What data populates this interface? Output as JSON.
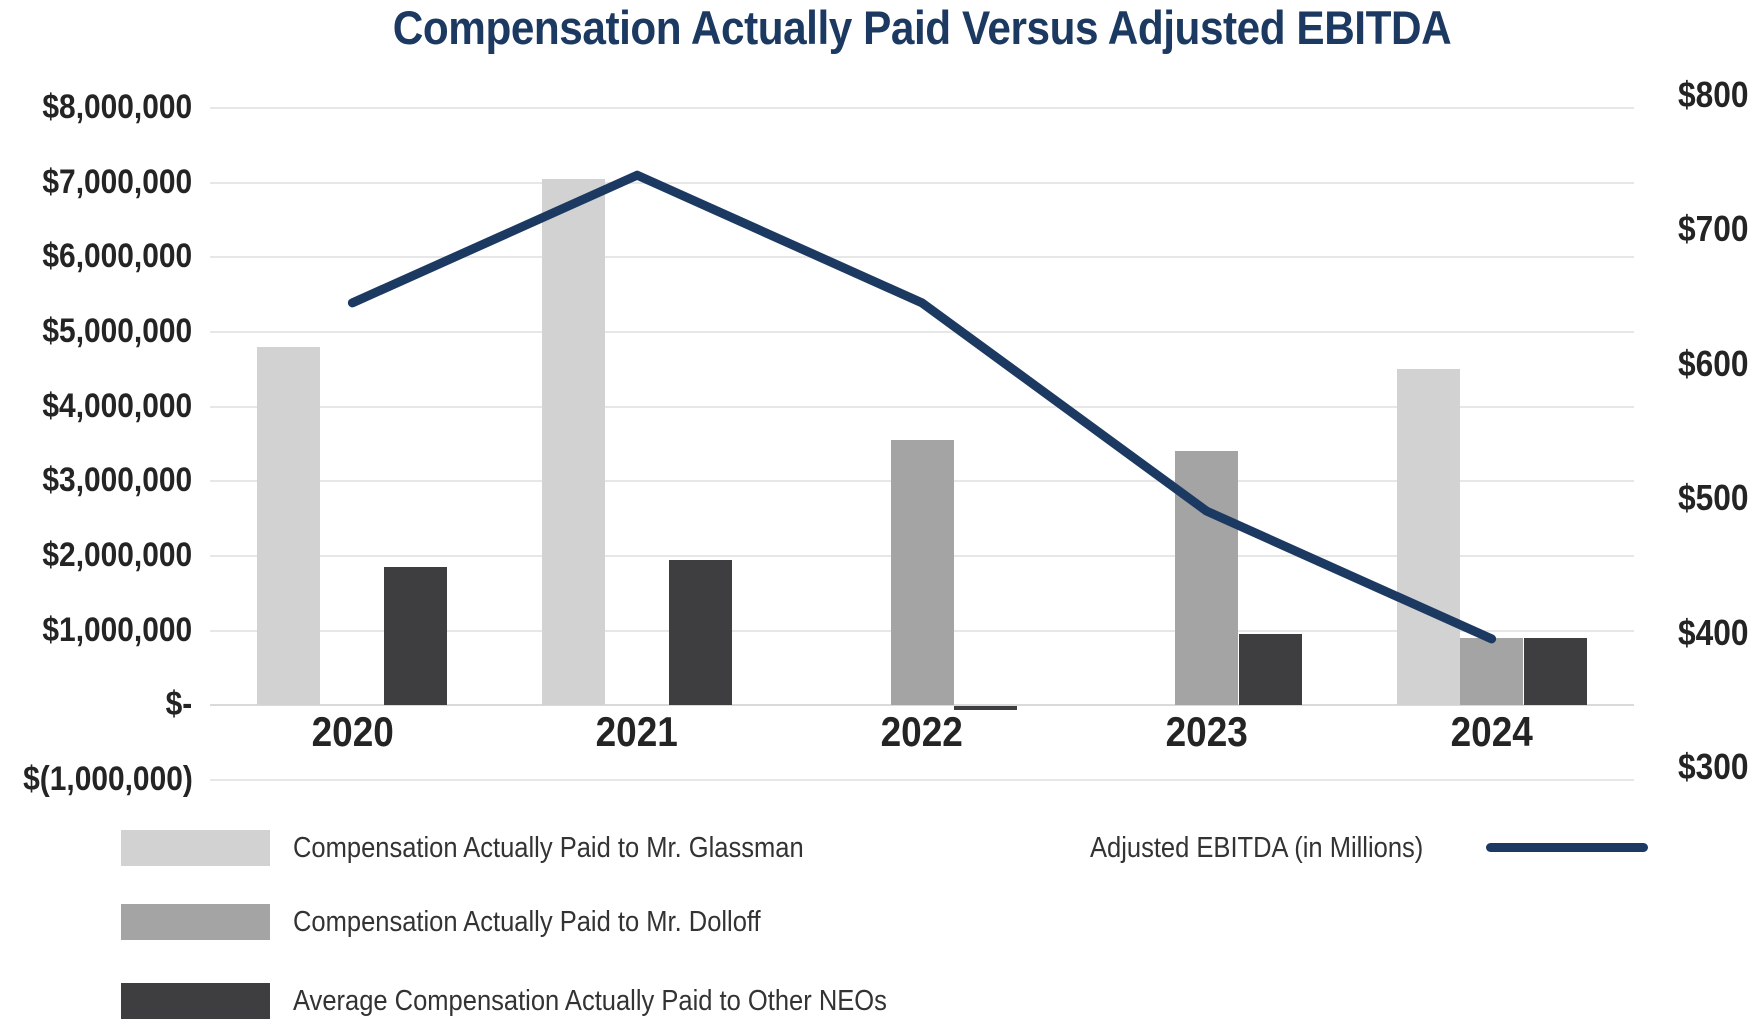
{
  "chart_data": {
    "type": "combo-bar-line-dual-axis",
    "title": "Compensation Actually Paid Versus Adjusted EBITDA",
    "title_color": "#1c3a61",
    "grid_color": "#e7e7e7",
    "label_color": "#242424",
    "legend_position": "bottom",
    "grid": "horizontal",
    "categories": [
      "2020",
      "2021",
      "2022",
      "2023",
      "2024"
    ],
    "series": [
      {
        "key": "glassman",
        "name": "Compensation Actually Paid to Mr. Glassman",
        "type": "bar",
        "axis": "left",
        "color": "#d2d2d3",
        "values": [
          4800000,
          7050000,
          null,
          null,
          4500000
        ]
      },
      {
        "key": "dolloff",
        "name": "Compensation Actually Paid to Mr. Dolloff",
        "type": "bar",
        "axis": "left",
        "color": "#a4a4a5",
        "values": [
          null,
          null,
          3550000,
          3400000,
          900000
        ]
      },
      {
        "key": "other-neos",
        "name": "Average Compensation Actually Paid to Other NEOs",
        "type": "bar",
        "axis": "left",
        "color": "#3e3e40",
        "values": [
          1850000,
          1950000,
          -50000,
          950000,
          900000
        ]
      },
      {
        "key": "ebitda",
        "name": "Adjusted EBITDA (in Millions)",
        "type": "line",
        "axis": "right",
        "color": "#1c3a61",
        "values": [
          655,
          750,
          655,
          500,
          405
        ]
      }
    ],
    "left_axis": {
      "min": -1000000,
      "max": 8000000,
      "tick_step": 1000000,
      "ticks": [
        {
          "label": "$8,000,000",
          "value": 8000000
        },
        {
          "label": "$7,000,000",
          "value": 7000000
        },
        {
          "label": "$6,000,000",
          "value": 6000000
        },
        {
          "label": "$5,000,000",
          "value": 5000000
        },
        {
          "label": "$4,000,000",
          "value": 4000000
        },
        {
          "label": "$3,000,000",
          "value": 3000000
        },
        {
          "label": "$2,000,000",
          "value": 2000000
        },
        {
          "label": "$1,000,000",
          "value": 1000000
        },
        {
          "label": "$-",
          "value": 0
        },
        {
          "label": "$(1,000,000)",
          "value": -1000000
        }
      ]
    },
    "right_axis": {
      "min": 300,
      "max": 800,
      "tick_step": 100,
      "ticks": [
        {
          "label": "$800",
          "value": 800
        },
        {
          "label": "$700",
          "value": 700
        },
        {
          "label": "$600",
          "value": 600
        },
        {
          "label": "$500",
          "value": 500
        },
        {
          "label": "$400",
          "value": 400
        },
        {
          "label": "$300",
          "value": 300
        }
      ]
    }
  }
}
